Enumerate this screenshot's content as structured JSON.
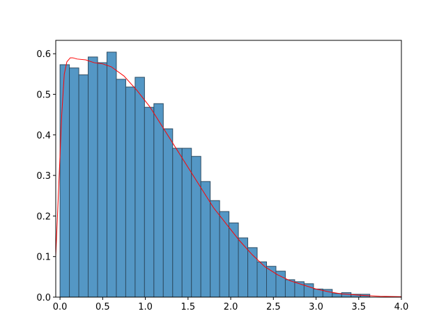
{
  "chart_data": {
    "type": "histogram",
    "bins": [
      0,
      0.11,
      0.22,
      0.33,
      0.44,
      0.55,
      0.66,
      0.77,
      0.88,
      0.99,
      1.1,
      1.21,
      1.32,
      1.43,
      1.54,
      1.65,
      1.76,
      1.87,
      1.98,
      2.09,
      2.2,
      2.31,
      2.42,
      2.53,
      2.64,
      2.75,
      2.86,
      2.97,
      3.08,
      3.19,
      3.3,
      3.41,
      3.52,
      3.63
    ],
    "values": [
      0.573,
      0.565,
      0.548,
      0.592,
      0.578,
      0.604,
      0.537,
      0.518,
      0.542,
      0.468,
      0.477,
      0.415,
      0.367,
      0.367,
      0.347,
      0.285,
      0.238,
      0.211,
      0.183,
      0.146,
      0.122,
      0.087,
      0.076,
      0.064,
      0.043,
      0.038,
      0.033,
      0.02,
      0.019,
      0.009,
      0.011,
      0.007,
      0.007
    ],
    "color": "#5497c5",
    "edgecolor": "#2d4c63",
    "line": {
      "color": "#ff0000",
      "x": [
        -0.05,
        -0.02,
        0.02,
        0.05,
        0.08,
        0.12,
        0.15,
        0.2,
        0.3,
        0.4,
        0.5,
        0.6,
        0.75,
        0.9,
        1.05,
        1.2,
        1.35,
        1.5,
        1.65,
        1.8,
        1.95,
        2.1,
        2.25,
        2.4,
        2.55,
        2.7,
        2.85,
        3.0,
        3.15,
        3.3,
        3.5,
        3.75,
        4.0
      ],
      "values": [
        0.1,
        0.25,
        0.45,
        0.55,
        0.58,
        0.59,
        0.59,
        0.587,
        0.585,
        0.578,
        0.575,
        0.568,
        0.545,
        0.51,
        0.47,
        0.42,
        0.37,
        0.32,
        0.27,
        0.22,
        0.18,
        0.14,
        0.105,
        0.075,
        0.055,
        0.04,
        0.03,
        0.02,
        0.013,
        0.008,
        0.005,
        0.002,
        0.001
      ]
    },
    "xlim": [
      -0.05,
      4.0
    ],
    "ylim": [
      0,
      0.633
    ],
    "xticks": [
      {
        "value": 0,
        "label": "0.0"
      },
      0.5,
      {
        "value": 1,
        "label": "1.0"
      },
      1.5,
      {
        "value": 2,
        "label": "2.0"
      },
      2.5,
      {
        "value": 3,
        "label": "3.0"
      },
      3.5,
      {
        "value": 4,
        "label": "4.0"
      }
    ],
    "yticks": [
      {
        "value": 0,
        "label": "0.0"
      },
      0.1,
      0.2,
      0.3,
      0.4,
      0.5,
      0.6
    ]
  }
}
